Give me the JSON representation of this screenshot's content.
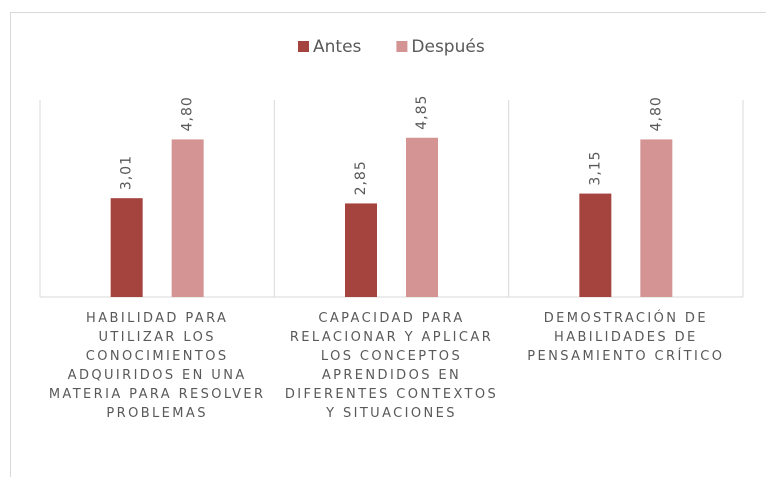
{
  "chart_data": {
    "type": "bar",
    "categories": [
      "HABILIDAD PARA UTILIZAR LOS CONOCIMIENTOS ADQUIRIDOS EN UNA MATERIA PARA RESOLVER PROBLEMAS",
      "CAPACIDAD PARA RELACIONAR Y APLICAR LOS CONCEPTOS APRENDIDOS EN DIFERENTES CONTEXTOS Y SITUACIONES",
      "DEMOSTRACIÓN DE HABILIDADES DE PENSAMIENTO CRÍTICO"
    ],
    "series": [
      {
        "name": "Antes",
        "color": "#a5443f",
        "values": [
          3.01,
          2.85,
          3.15
        ],
        "value_labels": [
          "3,01",
          "2,85",
          "3,15"
        ]
      },
      {
        "name": "Después",
        "color": "#d49494",
        "values": [
          4.8,
          4.85,
          4.8
        ],
        "value_labels": [
          "4,80",
          "4,85",
          "4,80"
        ]
      }
    ],
    "ylim": [
      0,
      6
    ],
    "legend": "top"
  }
}
